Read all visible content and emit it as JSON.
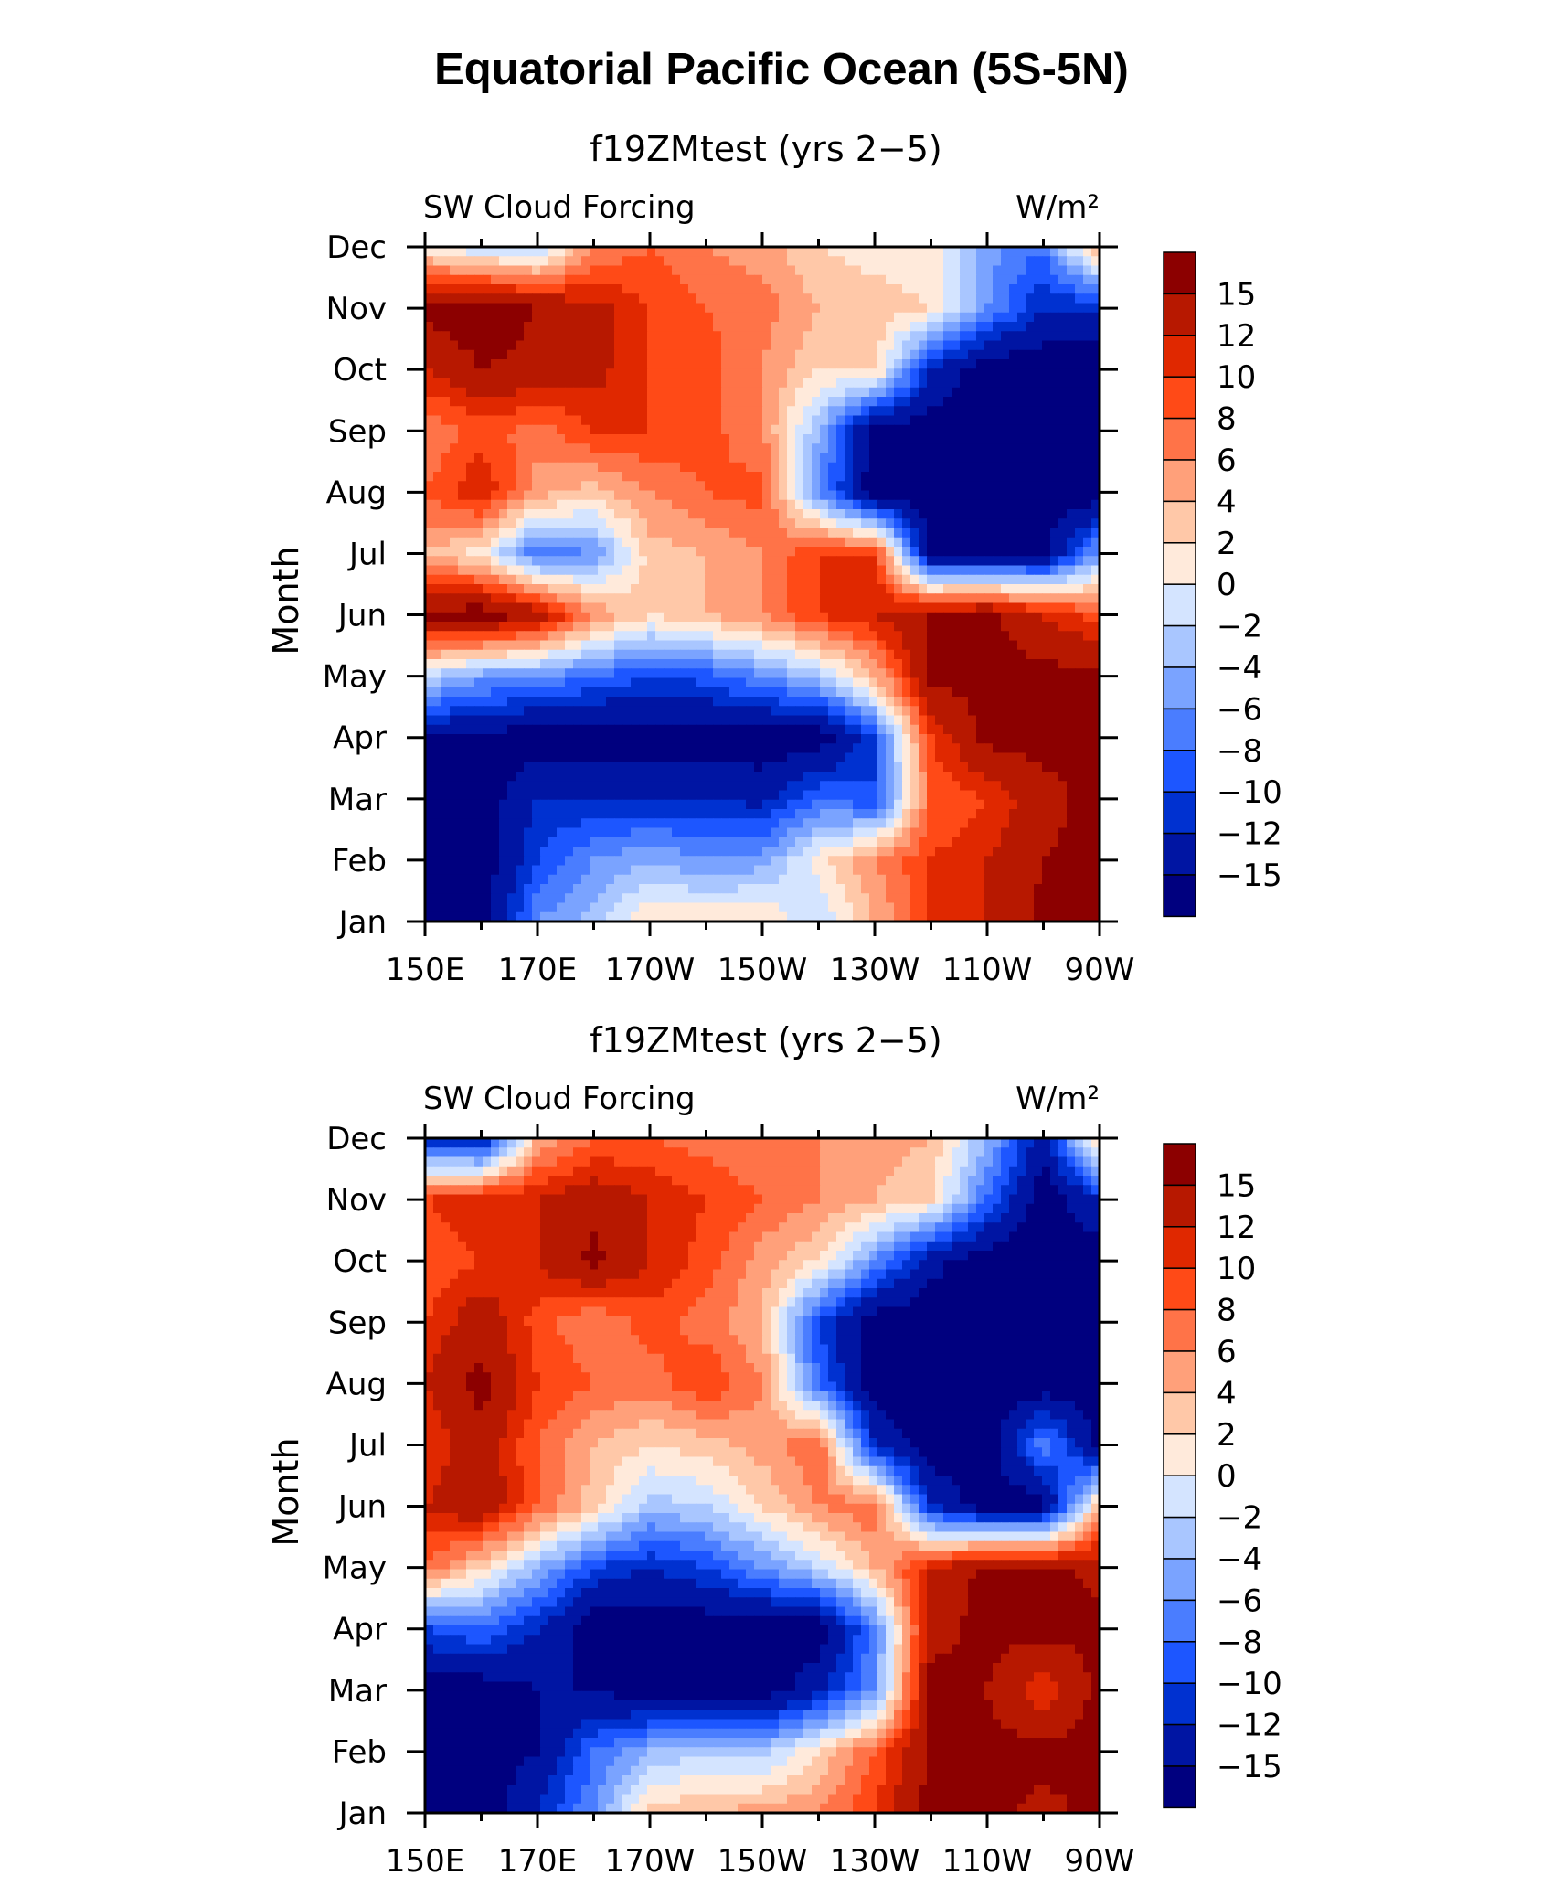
{
  "title": "Equatorial Pacific Ocean (5S-5N)",
  "colors": [
    "#00007f",
    "#0015a3",
    "#0031d0",
    "#1d56ff",
    "#4a7dff",
    "#7aa3ff",
    "#a9c6ff",
    "#d4e4ff",
    "#ffeadb",
    "#ffc8a8",
    "#ffa07a",
    "#ff7348",
    "#ff4a17",
    "#e02800",
    "#b71800",
    "#8c0000"
  ],
  "chart_data": [
    {
      "type": "heatmap",
      "title": "f19ZMtest (yrs 2−5)",
      "left_label": "SW Cloud Forcing",
      "right_label": "W/m²",
      "ylabel": "Month",
      "x_ticks": [
        "150E",
        "170E",
        "170W",
        "150W",
        "130W",
        "110W",
        "90W"
      ],
      "y_ticks": [
        "Jan",
        "Feb",
        "Mar",
        "Apr",
        "May",
        "Jun",
        "Jul",
        "Aug",
        "Sep",
        "Oct",
        "Nov",
        "Dec"
      ],
      "colorbar_labels": [
        "15",
        "12",
        "10",
        "8",
        "6",
        "4",
        "2",
        "0",
        "−2",
        "−4",
        "−6",
        "−8",
        "−10",
        "−12",
        "−15"
      ],
      "x": [
        "150E",
        "160E",
        "170E",
        "180",
        "170W",
        "160W",
        "150W",
        "140W",
        "130W",
        "120W",
        "110W",
        "100W",
        "90W"
      ],
      "y": [
        "Jan",
        "Feb",
        "Mar",
        "Apr",
        "May",
        "Jun",
        "Jul",
        "Aug",
        "Sep",
        "Oct",
        "Nov",
        "Dec"
      ],
      "z": [
        [
          -17,
          -17,
          -6,
          -3,
          2,
          2,
          2,
          -2,
          4,
          10,
          12,
          16,
          16
        ],
        [
          -17,
          -17,
          -10,
          -6,
          -4,
          -6,
          -5,
          1,
          6,
          10,
          12,
          15,
          16
        ],
        [
          -17,
          -17,
          -12,
          -12,
          -12,
          -12,
          -13,
          -8,
          -10,
          8,
          10,
          14,
          16
        ],
        [
          -15,
          -16,
          -17,
          -17,
          -17,
          -17,
          -17,
          -17,
          -10,
          10,
          16,
          16,
          16
        ],
        [
          -2,
          -5,
          -6,
          -8,
          -10,
          -9,
          -6,
          -3,
          4,
          16,
          16,
          16,
          16
        ],
        [
          16,
          17,
          14,
          6,
          2,
          4,
          6,
          10,
          12,
          15,
          16,
          12,
          9
        ],
        [
          4,
          1,
          -8,
          -6,
          3,
          4,
          6,
          10,
          10,
          -16,
          -16,
          -16,
          -5
        ],
        [
          8,
          12,
          5,
          3,
          6,
          8,
          9,
          -6,
          -17,
          -17,
          -17,
          -17,
          -17
        ],
        [
          6,
          9,
          7,
          10,
          10,
          9,
          6,
          -4,
          -17,
          -17,
          -17,
          -17,
          -17
        ],
        [
          12,
          15,
          14,
          13,
          10,
          9,
          6,
          2,
          3,
          -12,
          -17,
          -17,
          -17
        ],
        [
          16,
          17,
          15,
          13,
          10,
          8,
          7,
          4,
          3,
          2,
          -6,
          -12,
          -12
        ],
        [
          1,
          -2,
          -3,
          6,
          8,
          6,
          5,
          2,
          1,
          1,
          -5,
          -8,
          6
        ]
      ]
    },
    {
      "type": "heatmap",
      "title": "f19ZMtest (yrs 2−5)",
      "left_label": "SW Cloud Forcing",
      "right_label": "W/m²",
      "ylabel": "Month",
      "x_ticks": [
        "150E",
        "170E",
        "170W",
        "150W",
        "130W",
        "110W",
        "90W"
      ],
      "y_ticks": [
        "Jan",
        "Feb",
        "Mar",
        "Apr",
        "May",
        "Jun",
        "Jul",
        "Aug",
        "Sep",
        "Oct",
        "Nov",
        "Dec"
      ],
      "colorbar_labels": [
        "15",
        "12",
        "10",
        "8",
        "6",
        "4",
        "2",
        "0",
        "−2",
        "−4",
        "−6",
        "−8",
        "−10",
        "−12",
        "−15"
      ],
      "x": [
        "150E",
        "160E",
        "170E",
        "180",
        "170W",
        "160W",
        "150W",
        "140W",
        "130W",
        "120W",
        "110W",
        "100W",
        "90W"
      ],
      "y": [
        "Jan",
        "Feb",
        "Mar",
        "Apr",
        "May",
        "Jun",
        "Jul",
        "Aug",
        "Sep",
        "Oct",
        "Nov",
        "Dec"
      ],
      "z": [
        [
          -17,
          -17,
          -12,
          -6,
          3,
          4,
          5,
          6,
          10,
          16,
          16,
          14,
          16
        ],
        [
          -17,
          -17,
          -15,
          -8,
          -4,
          -2,
          -3,
          2,
          8,
          16,
          16,
          16,
          16
        ],
        [
          -17,
          -17,
          -15,
          -15,
          -17,
          -17,
          -17,
          -13,
          -6,
          16,
          15,
          10,
          16
        ],
        [
          -10,
          -8,
          -12,
          -17,
          -17,
          -17,
          -17,
          -17,
          -7,
          14,
          16,
          16,
          16
        ],
        [
          8,
          2,
          -4,
          -10,
          -12,
          -10,
          -6,
          -2,
          4,
          12,
          16,
          16,
          14
        ],
        [
          12,
          15,
          8,
          3,
          -3,
          -2,
          2,
          6,
          8,
          -12,
          -17,
          -17,
          4
        ],
        [
          10,
          14,
          8,
          4,
          2,
          3,
          5,
          8,
          -12,
          -17,
          -17,
          -6,
          -16
        ],
        [
          12,
          16,
          10,
          8,
          7,
          10,
          6,
          -8,
          -17,
          -17,
          -17,
          -17,
          -17
        ],
        [
          10,
          14,
          9,
          6,
          9,
          7,
          4,
          -10,
          -17,
          -17,
          -17,
          -17,
          -17
        ],
        [
          8,
          10,
          12,
          16,
          12,
          9,
          5,
          2,
          -6,
          -14,
          -17,
          -17,
          -17
        ],
        [
          10,
          12,
          12,
          14,
          12,
          10,
          8,
          6,
          4,
          2,
          -8,
          -17,
          -12
        ],
        [
          -12,
          -14,
          4,
          8,
          8,
          7,
          6,
          6,
          5,
          4,
          -4,
          -14,
          4
        ]
      ]
    }
  ]
}
